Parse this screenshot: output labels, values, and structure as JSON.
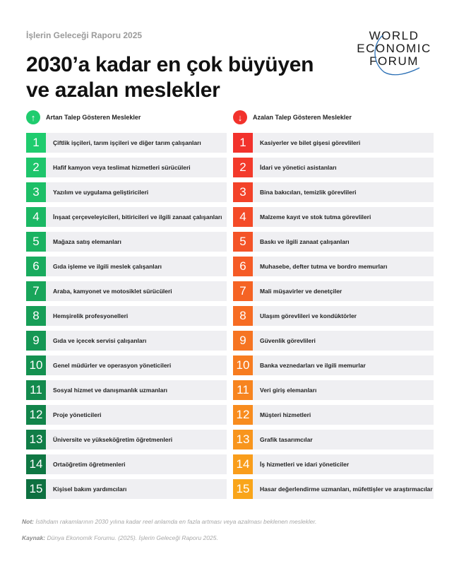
{
  "header": {
    "report": "İşlerin Geleceği Raporu 2025",
    "title_line1": "2030’a kadar en çok büyüyen",
    "title_line2": "ve azalan meslekler"
  },
  "logo": {
    "line1": "WORLD",
    "line2": "ECONOMIC",
    "line3": "FORUM"
  },
  "growing": {
    "label": "Artan Talep Gösteren Meslekler",
    "icon": "arrow-up-icon",
    "color_start": "#1fcc6e",
    "color_end": "#0e7040",
    "items": [
      "Çiftlik işçileri, tarım işçileri ve diğer tarım çalışanları",
      "Hafif kamyon veya teslimat hizmetleri sürücüleri",
      "Yazılım ve uygulama geliştiricileri",
      "İnşaat çerçeveleyicileri, bitiricileri ve ilgili zanaat çalışanları",
      "Mağaza satış elemanları",
      "Gıda işleme ve ilgili meslek çalışanları",
      "Araba, kamyonet ve motosiklet sürücüleri",
      "Hemşirelik profesyonelleri",
      "Gıda ve içecek servisi çalışanları",
      "Genel müdürler ve operasyon yöneticileri",
      "Sosyal hizmet ve danışmanlık uzmanları",
      "Proje yöneticileri",
      "Üniversite ve yükseköğretim öğretmenleri",
      "Ortaöğretim öğretmenleri",
      "Kişisel bakım yardımcıları"
    ]
  },
  "declining": {
    "label": "Azalan Talep Gösteren Meslekler",
    "icon": "arrow-down-icon",
    "color_start": "#f2322c",
    "color_end": "#f9a51a",
    "items": [
      "Kasiyerler ve bilet gişesi görevlileri",
      "İdari ve yönetici asistanları",
      "Bina bakıcıları, temizlik görevlileri",
      "Malzeme kayıt ve stok tutma görevlileri",
      "Baskı ve ilgili zanaat çalışanları",
      "Muhasebe, defter tutma ve bordro memurları",
      "Mali müşavirler ve denetçiler",
      "Ulaşım görevlileri ve kondüktörler",
      "Güvenlik görevlileri",
      "Banka veznedarları ve ilgili memurlar",
      "Veri giriş elemanları",
      "Müşteri hizmetleri",
      "Grafik tasarımcılar",
      "İş hizmetleri ve idari yöneticiler",
      "Hasar değerlendirme uzmanları, müfettişler ve araştırmacılar"
    ]
  },
  "footer": {
    "note_label": "Not:",
    "note": "İstihdam rakamlarının 2030 yılına kadar reel anlamda en fazla artması veya azalması beklenen meslekler.",
    "source_label": "Kaynak:",
    "source": "Dünya Ekonomik Forumu. (2025). İşlerin Geleceği Raporu 2025."
  }
}
